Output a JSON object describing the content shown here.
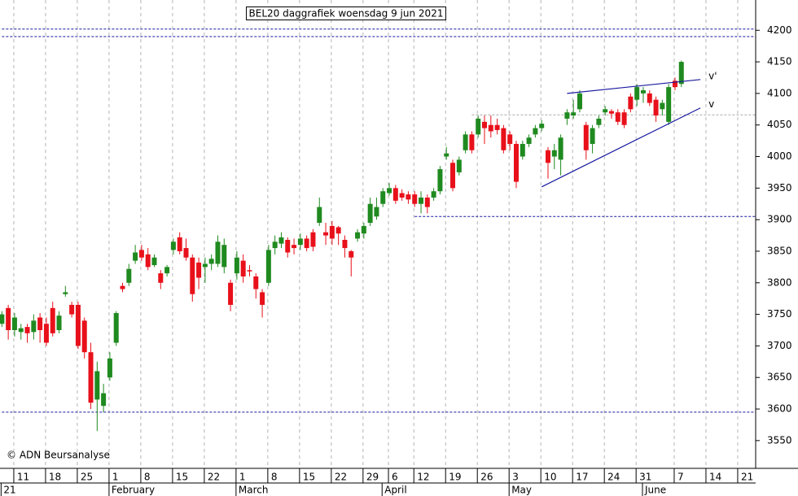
{
  "chart_data": {
    "type": "candlestick",
    "title": "BEL20 daggrafiek woensdag 9 jun 2021",
    "credit": "© ADN Beursanalyse",
    "up_color": "#1f8a1f",
    "down_color": "#e8101a",
    "ylim": [
      3506,
      4248
    ],
    "yticks": [
      3550,
      3600,
      3650,
      3700,
      3750,
      3800,
      3850,
      3900,
      3950,
      4000,
      4050,
      4100,
      4150,
      4200
    ],
    "grid": true,
    "categories": [
      null,
      null,
      "11",
      null,
      null,
      null,
      null,
      "18",
      null,
      null,
      null,
      null,
      "25",
      null,
      null,
      null,
      null,
      "1",
      null,
      null,
      null,
      null,
      "8",
      null,
      null,
      null,
      null,
      "15",
      null,
      null,
      null,
      null,
      "22",
      null,
      null,
      null,
      null,
      "1",
      null,
      null,
      null,
      null,
      "8",
      null,
      null,
      null,
      null,
      "15",
      null,
      null,
      null,
      null,
      "22",
      null,
      null,
      null,
      null,
      "29",
      null,
      null,
      null,
      "6",
      null,
      null,
      null,
      "12",
      null,
      null,
      null,
      null,
      "19",
      null,
      null,
      null,
      null,
      "26",
      null,
      null,
      null,
      null,
      "3",
      null,
      null,
      null,
      null,
      "10",
      null,
      null,
      null,
      null,
      "17",
      null,
      null,
      null,
      null,
      "24",
      null,
      null,
      null,
      null,
      "31",
      null,
      null,
      null,
      null,
      null,
      "7",
      null,
      null,
      null,
      null,
      "14",
      null,
      null,
      null,
      null,
      "21",
      null,
      null
    ],
    "month_labels": [
      {
        "label": "21",
        "category": 0
      },
      {
        "label": "February",
        "category": 17
      },
      {
        "label": "March",
        "category": 37
      },
      {
        "label": "April",
        "category": 60
      },
      {
        "label": "May",
        "category": 80
      },
      {
        "label": "June",
        "category": 101
      }
    ],
    "open": [
      3735,
      3760,
      3725,
      3722,
      3730,
      3722,
      3745,
      3735,
      3760,
      3725,
      3782,
      3765,
      3765,
      3740,
      3690,
      3615,
      3605,
      3650,
      3705,
      3795,
      3800,
      3835,
      3852,
      3845,
      3828,
      3815,
      3815,
      3852,
      3872,
      3855,
      3840,
      3832,
      3825,
      3830,
      3830,
      3825,
      3800,
      3815,
      3835,
      3820,
      3810,
      3785,
      3800,
      3855,
      3862,
      3868,
      3860,
      3860,
      3870,
      3880,
      3895,
      3880,
      3890,
      3888,
      3868,
      3850,
      3870,
      3878,
      3895,
      3905,
      3925,
      3942,
      3950,
      3942,
      3940,
      3940,
      3925,
      3935,
      3935,
      3945,
      4000,
      3990,
      3975,
      4010,
      4035,
      4035,
      4055,
      4050,
      4050,
      4045,
      4035,
      4020,
      4000,
      4020,
      4035,
      4045,
      4010,
      4000,
      3995,
      4060,
      4065,
      4075,
      4050,
      4020,
      4050,
      4070,
      4072,
      4070,
      4070,
      4095,
      4090,
      4100,
      4100,
      4090,
      4075,
      4055,
      4120,
      4115,
      null,
      null,
      null,
      null,
      null,
      null,
      null,
      null,
      null,
      null,
      null
    ],
    "high": [
      3755,
      3765,
      3752,
      3735,
      3735,
      3750,
      3752,
      3745,
      3770,
      3755,
      3795,
      3770,
      3770,
      3745,
      3705,
      3675,
      3640,
      3690,
      3755,
      3800,
      3830,
      3860,
      3860,
      3855,
      3845,
      3820,
      3828,
      3870,
      3880,
      3870,
      3845,
      3840,
      3840,
      3845,
      3875,
      3870,
      3805,
      3850,
      3845,
      3828,
      3815,
      3790,
      3860,
      3875,
      3880,
      3872,
      3870,
      3878,
      3875,
      3885,
      3935,
      3895,
      3898,
      3890,
      3875,
      3852,
      3885,
      3895,
      3935,
      3935,
      3950,
      3958,
      3955,
      3948,
      3945,
      3945,
      3945,
      3940,
      3950,
      3985,
      4015,
      3995,
      4000,
      4040,
      4040,
      4065,
      4065,
      4065,
      4060,
      4050,
      4040,
      4025,
      4025,
      4035,
      4050,
      4058,
      4015,
      4020,
      4035,
      4075,
      4090,
      4105,
      4055,
      4050,
      4065,
      4080,
      4075,
      4075,
      4075,
      4100,
      4115,
      4110,
      4105,
      4095,
      4090,
      4115,
      4125,
      4152,
      null,
      null,
      null,
      null,
      null,
      null,
      null,
      null,
      null,
      null,
      null
    ],
    "low": [
      3730,
      3710,
      3715,
      3710,
      3705,
      3710,
      3705,
      3700,
      3715,
      3720,
      3778,
      3745,
      3695,
      3680,
      3600,
      3565,
      3595,
      3645,
      3700,
      3785,
      3795,
      3830,
      3835,
      3820,
      3825,
      3790,
      3810,
      3845,
      3845,
      3835,
      3770,
      3790,
      3800,
      3820,
      3825,
      3815,
      3755,
      3805,
      3800,
      3810,
      3775,
      3745,
      3795,
      3845,
      3855,
      3840,
      3845,
      3852,
      3850,
      3850,
      3890,
      3860,
      3860,
      3860,
      3840,
      3810,
      3865,
      3870,
      3890,
      3900,
      3920,
      3938,
      3925,
      3930,
      3925,
      3920,
      3910,
      3910,
      3930,
      3940,
      3995,
      3945,
      3970,
      4005,
      4005,
      4030,
      4020,
      4030,
      4035,
      4005,
      4010,
      3950,
      3995,
      4015,
      4030,
      4040,
      3965,
      3980,
      3970,
      4050,
      4060,
      4070,
      3995,
      4005,
      4045,
      4065,
      4060,
      4050,
      4045,
      4070,
      4080,
      4085,
      4080,
      4055,
      4065,
      4050,
      4105,
      4110,
      null,
      null,
      null,
      null,
      null,
      null,
      null,
      null,
      null,
      null,
      null
    ],
    "close": [
      3750,
      3725,
      3745,
      3728,
      3720,
      3740,
      3725,
      3705,
      3720,
      3748,
      3785,
      3750,
      3700,
      3690,
      3610,
      3660,
      3625,
      3680,
      3752,
      3790,
      3822,
      3848,
      3840,
      3825,
      3840,
      3800,
      3825,
      3865,
      3850,
      3840,
      3782,
      3808,
      3830,
      3838,
      3865,
      3860,
      3765,
      3840,
      3810,
      3818,
      3790,
      3765,
      3852,
      3865,
      3872,
      3848,
      3855,
      3870,
      3855,
      3857,
      3920,
      3875,
      3870,
      3878,
      3855,
      3840,
      3880,
      3890,
      3925,
      3920,
      3945,
      3950,
      3930,
      3935,
      3932,
      3925,
      3935,
      3920,
      3945,
      3980,
      4005,
      3950,
      3995,
      4035,
      4010,
      4060,
      4045,
      4040,
      4042,
      4010,
      4020,
      3960,
      4020,
      4030,
      4045,
      4052,
      3990,
      4010,
      4030,
      4070,
      4070,
      4100,
      4010,
      4045,
      4060,
      4075,
      4068,
      4055,
      4050,
      4075,
      4110,
      4105,
      4085,
      4065,
      4085,
      4110,
      4110,
      4150,
      null,
      null,
      null,
      null,
      null,
      null,
      null,
      null,
      null,
      null,
      null
    ],
    "hlines": [
      {
        "value": 4202,
        "from": 0,
        "color": "#1a1aa0"
      },
      {
        "value": 4190,
        "from": 0,
        "color": "#1a1aa0"
      },
      {
        "value": 3905,
        "from": 65,
        "color": "#1a1aa0"
      },
      {
        "value": 3595,
        "from": 0,
        "color": "#1a1aa0"
      },
      {
        "value": 4066,
        "from": 74,
        "color": "#aaaaaa"
      }
    ],
    "trendlines": [
      {
        "label": "v'",
        "from": [
          89,
          4100
        ],
        "to": [
          110,
          4122
        ],
        "color": "#1a1aa0"
      },
      {
        "label": "v",
        "from": [
          85,
          3952
        ],
        "to": [
          110,
          4077
        ],
        "color": "#1a1aa0"
      }
    ]
  }
}
